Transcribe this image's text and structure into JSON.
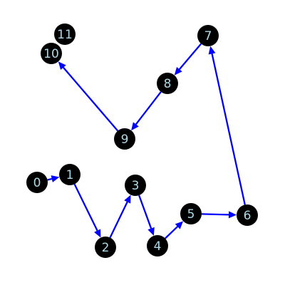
{
  "graph": {
    "directed": true,
    "colors": {
      "background": "#ffffff",
      "node_fill": "#000000",
      "label_color": "#add8e6",
      "edge_color": "#0000ff"
    },
    "nodes": [
      {
        "id": "0",
        "label": "0"
      },
      {
        "id": "1",
        "label": "1"
      },
      {
        "id": "2",
        "label": "2"
      },
      {
        "id": "3",
        "label": "3"
      },
      {
        "id": "4",
        "label": "4"
      },
      {
        "id": "5",
        "label": "5"
      },
      {
        "id": "6",
        "label": "6"
      },
      {
        "id": "7",
        "label": "7"
      },
      {
        "id": "8",
        "label": "8"
      },
      {
        "id": "9",
        "label": "9"
      },
      {
        "id": "10",
        "label": "10"
      },
      {
        "id": "11",
        "label": "11"
      }
    ],
    "edges": [
      {
        "source": "0",
        "target": "1"
      },
      {
        "source": "1",
        "target": "2"
      },
      {
        "source": "2",
        "target": "3"
      },
      {
        "source": "3",
        "target": "4"
      },
      {
        "source": "4",
        "target": "5"
      },
      {
        "source": "5",
        "target": "6"
      },
      {
        "source": "6",
        "target": "7"
      },
      {
        "source": "7",
        "target": "8"
      },
      {
        "source": "8",
        "target": "9"
      },
      {
        "source": "9",
        "target": "10"
      }
    ]
  }
}
